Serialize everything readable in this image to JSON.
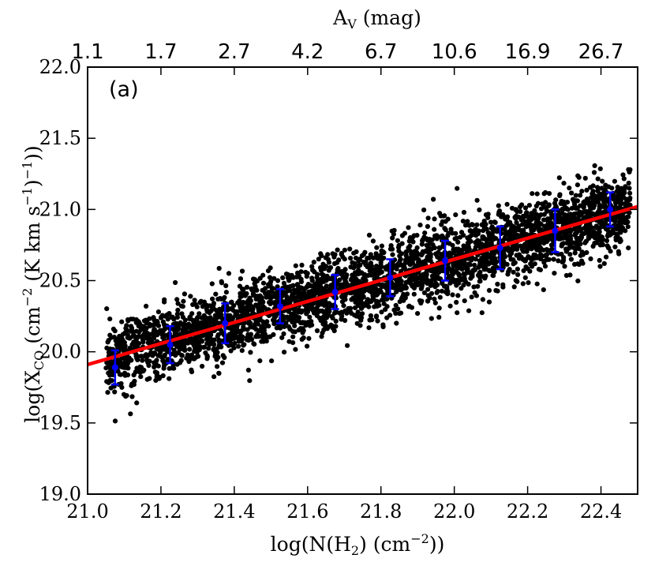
{
  "chart_data": {
    "type": "scatter",
    "panel_label": "(a)",
    "xlabel": "log(N(H₂) (cm⁻²))",
    "ylabel": "log(X_CO (cm⁻² (K km s⁻¹)⁻¹))",
    "top_xlabel": "A_V (mag)",
    "xlim": [
      21.0,
      22.5
    ],
    "ylim": [
      19.0,
      22.0
    ],
    "x_ticks": [
      "21.0",
      "21.2",
      "21.4",
      "21.6",
      "21.8",
      "22.0",
      "22.2",
      "22.4"
    ],
    "y_ticks": [
      "19.0",
      "19.5",
      "20.0",
      "20.5",
      "21.0",
      "21.5",
      "22.0"
    ],
    "top_ticks": [
      {
        "x": 21.0,
        "label": "1.1"
      },
      {
        "x": 21.2,
        "label": "1.7"
      },
      {
        "x": 21.4,
        "label": "2.7"
      },
      {
        "x": 21.6,
        "label": "4.2"
      },
      {
        "x": 21.8,
        "label": "6.7"
      },
      {
        "x": 22.0,
        "label": "10.6"
      },
      {
        "x": 22.2,
        "label": "16.9"
      },
      {
        "x": 22.4,
        "label": "26.7"
      }
    ],
    "fit_line": {
      "color": "#ff0000",
      "x": [
        21.0,
        22.5
      ],
      "y": [
        19.91,
        21.02
      ]
    },
    "binned": {
      "color": "#0000ff",
      "x": [
        21.075,
        21.225,
        21.375,
        21.525,
        21.675,
        21.825,
        21.975,
        22.125,
        22.275,
        22.425
      ],
      "y": [
        19.89,
        20.05,
        20.2,
        20.32,
        20.42,
        20.52,
        20.64,
        20.73,
        20.85,
        21.0
      ],
      "err": [
        0.12,
        0.13,
        0.14,
        0.12,
        0.12,
        0.13,
        0.14,
        0.15,
        0.15,
        0.12
      ]
    },
    "scatter": {
      "color": "#000000",
      "n_points": 3500,
      "x_range": [
        21.0,
        22.5
      ],
      "trend_y_at_x_min": 19.91,
      "trend_y_at_x_max": 21.02,
      "scatter_sd": 0.13
    },
    "grid": false
  }
}
